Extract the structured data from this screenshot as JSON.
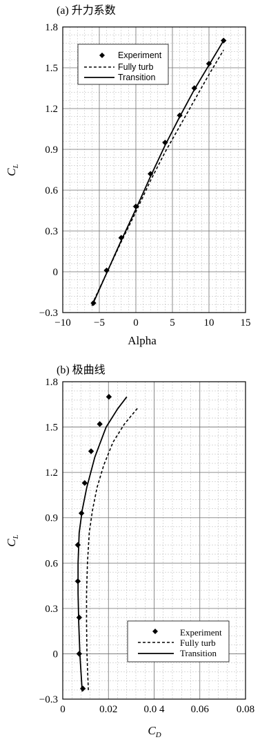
{
  "chart_data": [
    {
      "type": "line",
      "title": "(a) 升力系数",
      "xlabel": "Alpha",
      "ylabel": "C",
      "ylabel_sub": "L",
      "xlim": [
        -10,
        15
      ],
      "ylim": [
        -0.3,
        1.8
      ],
      "x_ticks": [
        -10,
        -5,
        0,
        5,
        10,
        15
      ],
      "x_tick_labels": [
        "−10",
        "−5",
        "0",
        "5",
        "10",
        "15"
      ],
      "y_ticks": [
        -0.3,
        0,
        0.3,
        0.6,
        0.9,
        1.2,
        1.5,
        1.8
      ],
      "y_tick_labels": [
        "−0.3",
        "0",
        "0.3",
        "0.6",
        "0.9",
        "1.2",
        "1.5",
        "1.8"
      ],
      "grid": true,
      "legend_position": "top-left",
      "series": [
        {
          "name": "Experiment",
          "style": "diamond-markers",
          "x": [
            -5.8,
            -4,
            -2,
            0,
            2,
            4,
            6,
            8,
            10,
            12
          ],
          "y": [
            -0.23,
            0.01,
            0.25,
            0.48,
            0.72,
            0.95,
            1.15,
            1.35,
            1.53,
            1.7
          ]
        },
        {
          "name": "Fully turb",
          "style": "dashed",
          "x": [
            -6,
            -4,
            -2,
            0,
            2,
            4,
            6,
            8,
            10,
            12
          ],
          "y": [
            -0.24,
            -0.01,
            0.22,
            0.44,
            0.67,
            0.88,
            1.07,
            1.26,
            1.45,
            1.63
          ]
        },
        {
          "name": "Transition",
          "style": "solid",
          "x": [
            -6,
            -4,
            -2,
            0,
            2,
            4,
            6,
            8,
            10,
            12
          ],
          "y": [
            -0.25,
            -0.01,
            0.23,
            0.46,
            0.7,
            0.93,
            1.14,
            1.34,
            1.52,
            1.7
          ]
        }
      ]
    },
    {
      "type": "line",
      "title": "(b) 极曲线",
      "xlabel": "C",
      "xlabel_sub": "D",
      "ylabel": "C",
      "ylabel_sub": "L",
      "xlim": [
        0,
        0.08
      ],
      "ylim": [
        -0.3,
        1.8
      ],
      "x_ticks": [
        0,
        0.02,
        0.04,
        0.06,
        0.08
      ],
      "x_tick_labels": [
        "0",
        "0.02",
        "0.0 4",
        "0.06",
        "0.08"
      ],
      "y_ticks": [
        -0.3,
        0,
        0.3,
        0.6,
        0.9,
        1.2,
        1.5,
        1.8
      ],
      "y_tick_labels": [
        "−0.3",
        "0",
        "0.3",
        "0.6",
        "0.9",
        "1.2",
        "1.5",
        "1.8"
      ],
      "grid": true,
      "legend_position": "bottom-right",
      "series": [
        {
          "name": "Experiment",
          "style": "diamond-markers",
          "x": [
            0.0088,
            0.0072,
            0.0072,
            0.0066,
            0.0066,
            0.0082,
            0.0096,
            0.0124,
            0.0162,
            0.0202
          ],
          "y": [
            -0.23,
            0.0,
            0.24,
            0.48,
            0.72,
            0.93,
            1.13,
            1.34,
            1.52,
            1.7
          ]
        },
        {
          "name": "Fully turb",
          "style": "dashed",
          "x": [
            0.0112,
            0.0106,
            0.0104,
            0.0104,
            0.0108,
            0.0116,
            0.013,
            0.015,
            0.018,
            0.022,
            0.027,
            0.033
          ],
          "y": [
            -0.24,
            0.0,
            0.2,
            0.4,
            0.6,
            0.8,
            0.95,
            1.1,
            1.25,
            1.4,
            1.52,
            1.63
          ]
        },
        {
          "name": "Transition",
          "style": "solid",
          "x": [
            0.0085,
            0.0075,
            0.007,
            0.0067,
            0.0067,
            0.0072,
            0.0085,
            0.0105,
            0.014,
            0.019,
            0.024,
            0.028
          ],
          "y": [
            -0.25,
            0.0,
            0.2,
            0.4,
            0.6,
            0.8,
            0.95,
            1.1,
            1.3,
            1.5,
            1.62,
            1.7
          ]
        }
      ]
    }
  ]
}
